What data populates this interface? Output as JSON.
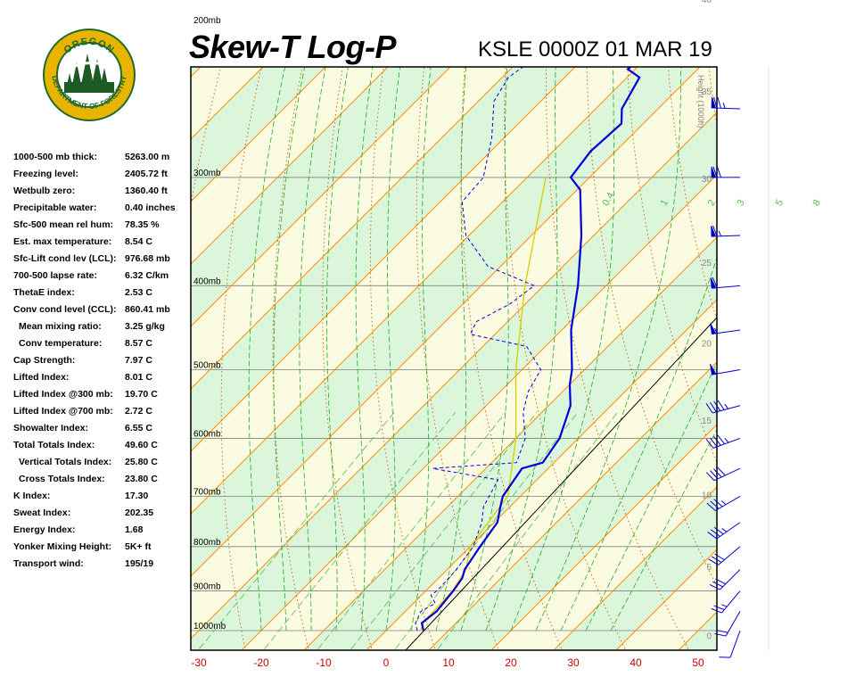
{
  "header": {
    "title": "Skew-T Log-P",
    "station": "KSLE 0000Z 01 MAR 19"
  },
  "logo": {
    "top_text": "OREGON",
    "ring_text": "DEPARTMENT OF FORESTRY",
    "colors": {
      "ring": "#1e6b2a",
      "gold": "#e8b400",
      "tree": "#1d5a25"
    }
  },
  "indices": [
    {
      "label": "1000-500 mb thick:",
      "value": "5263.00 m"
    },
    {
      "label": "Freezing level:",
      "value": "2405.72 ft"
    },
    {
      "label": "Wetbulb zero:",
      "value": "1360.40 ft"
    },
    {
      "label": "Precipitable water:",
      "value": "0.40 inches"
    },
    {
      "label": "Sfc-500 mean rel hum:",
      "value": "78.35 %"
    },
    {
      "label": "Est. max temperature:",
      "value": "8.54 C"
    },
    {
      "label": "Sfc-Lift cond lev (LCL):",
      "value": "976.68 mb"
    },
    {
      "label": "700-500 lapse rate:",
      "value": "6.32 C/km"
    },
    {
      "label": "ThetaE index:",
      "value": "2.53 C"
    },
    {
      "label": "Conv cond level (CCL):",
      "value": "860.41 mb"
    },
    {
      "label": "Mean mixing ratio:",
      "value": "3.25 g/kg",
      "indent": true
    },
    {
      "label": "Conv temperature:",
      "value": "8.57 C",
      "indent": true
    },
    {
      "label": "Cap Strength:",
      "value": "7.97 C"
    },
    {
      "label": "Lifted Index:",
      "value": "8.01 C"
    },
    {
      "label": "Lifted Index @300 mb:",
      "value": "19.70 C"
    },
    {
      "label": "Lifted Index @700 mb:",
      "value": "2.72 C"
    },
    {
      "label": "Showalter Index:",
      "value": "6.55 C"
    },
    {
      "label": "Total Totals Index:",
      "value": "49.60 C"
    },
    {
      "label": "Vertical Totals Index:",
      "value": "25.80 C",
      "indent": true
    },
    {
      "label": "Cross Totals Index:",
      "value": "23.80 C",
      "indent": true
    },
    {
      "label": "K Index:",
      "value": "17.30"
    },
    {
      "label": "Sweat Index:",
      "value": "202.35"
    },
    {
      "label": "Energy Index:",
      "value": "1.68"
    },
    {
      "label": "Yonker Mixing Height:",
      "value": "5K+ ft"
    },
    {
      "label": "Transport wind:",
      "value": "195/19"
    }
  ],
  "chart_data": {
    "type": "line",
    "xlabel": "",
    "ylabel": "",
    "x_ticks": [
      -30,
      -20,
      -10,
      0,
      10,
      20,
      30,
      40,
      50
    ],
    "xlim": [
      -30,
      52
    ],
    "pressure_levels": [
      {
        "p": 1000,
        "label": "1000mb"
      },
      {
        "p": 900,
        "label": "900mb"
      },
      {
        "p": 800,
        "label": "800mb"
      },
      {
        "p": 700,
        "label": "700mb"
      },
      {
        "p": 600,
        "label": "600mb"
      },
      {
        "p": 500,
        "label": "500mb"
      },
      {
        "p": 400,
        "label": "400mb"
      },
      {
        "p": 300,
        "label": "300mb"
      },
      {
        "p": 200,
        "label": "200mb"
      }
    ],
    "height_axis": {
      "label": "Height (1000ft)",
      "ticks": [
        {
          "label": "0",
          "kft": 0
        },
        {
          "label": "5",
          "kft": 5
        },
        {
          "label": "10",
          "kft": 10
        },
        {
          "label": "15",
          "kft": 15
        },
        {
          "label": "20",
          "kft": 20
        },
        {
          "label": "25",
          "kft": 25
        },
        {
          "label": "30",
          "kft": 30
        },
        {
          "label": "35",
          "kft": 35
        },
        {
          "label": "40",
          "kft": 40
        },
        {
          "label": "45",
          "kft": 45
        },
        {
          "label": "50",
          "kft": 50
        }
      ]
    },
    "mixing_ratio_labels": [
      "0.4",
      "1",
      "2",
      "3",
      "5",
      "8"
    ],
    "series": [
      {
        "role": "temperature",
        "color": "#0000dd",
        "points": [
          [
            6.0,
            1000
          ],
          [
            4.5,
            980
          ],
          [
            5.0,
            950
          ],
          [
            4.4,
            900
          ],
          [
            3.8,
            870
          ],
          [
            2.8,
            850
          ],
          [
            1.6,
            800
          ],
          [
            0.5,
            750
          ],
          [
            -1.5,
            720
          ],
          [
            -2.8,
            700
          ],
          [
            -4.2,
            650
          ],
          [
            -1.8,
            640
          ],
          [
            -3.0,
            600
          ],
          [
            -6.5,
            550
          ],
          [
            -10.0,
            520
          ],
          [
            -12.0,
            500
          ],
          [
            -18.5,
            450
          ],
          [
            -24.5,
            400
          ],
          [
            -32.0,
            350
          ],
          [
            -39.5,
            310
          ],
          [
            -43.0,
            300
          ],
          [
            -44.0,
            280
          ],
          [
            -43.5,
            260
          ],
          [
            -45.8,
            250
          ],
          [
            -48.0,
            230
          ],
          [
            -51.2,
            225
          ],
          [
            -50.2,
            210
          ],
          [
            -52.0,
            200
          ],
          [
            -53.0,
            185
          ],
          [
            -51.8,
            170
          ],
          [
            -53.5,
            160
          ],
          [
            -51.5,
            150
          ]
        ]
      },
      {
        "role": "dewpoint",
        "color": "#0000dd",
        "points": [
          [
            5.0,
            1000
          ],
          [
            3.5,
            980
          ],
          [
            2.5,
            950
          ],
          [
            3.5,
            930
          ],
          [
            1.5,
            910
          ],
          [
            1.8,
            900
          ],
          [
            1.5,
            850
          ],
          [
            0.5,
            800
          ],
          [
            -2.0,
            750
          ],
          [
            -4.2,
            720
          ],
          [
            -5.0,
            700
          ],
          [
            -6.2,
            670
          ],
          [
            -18.5,
            650
          ],
          [
            -6.0,
            640
          ],
          [
            -8.5,
            600
          ],
          [
            -13.0,
            560
          ],
          [
            -15.5,
            530
          ],
          [
            -17.0,
            500
          ],
          [
            -23.0,
            470
          ],
          [
            -34.0,
            455
          ],
          [
            -35.0,
            440
          ],
          [
            -32.5,
            420
          ],
          [
            -31.5,
            400
          ],
          [
            -42.0,
            380
          ],
          [
            -50.5,
            350
          ],
          [
            -56.5,
            320
          ],
          [
            -57.0,
            300
          ],
          [
            -62.0,
            270
          ],
          [
            -67.5,
            245
          ],
          [
            -69.0,
            230
          ],
          [
            -67.0,
            210
          ],
          [
            -69.0,
            200
          ],
          [
            -74.0,
            190
          ],
          [
            -80.0,
            170
          ],
          [
            -83.0,
            150
          ]
        ]
      }
    ],
    "parcel": {
      "role": "parcel-trace",
      "color": "#d8d000",
      "points": [
        [
          5.5,
          1000
        ],
        [
          4.6,
          975
        ],
        [
          4.3,
          900
        ],
        [
          3.0,
          850
        ],
        [
          0.0,
          800
        ],
        [
          -2.0,
          700
        ],
        [
          -10.0,
          600
        ],
        [
          -21.0,
          500
        ],
        [
          -33.0,
          400
        ],
        [
          -47.0,
          300
        ]
      ]
    },
    "wind_barbs": [
      {
        "p": 1000,
        "dir": 200,
        "kt": 10
      },
      {
        "p": 950,
        "dir": 210,
        "kt": 20
      },
      {
        "p": 900,
        "dir": 220,
        "kt": 25
      },
      {
        "p": 850,
        "dir": 225,
        "kt": 30
      },
      {
        "p": 800,
        "dir": 230,
        "kt": 30
      },
      {
        "p": 750,
        "dir": 235,
        "kt": 35
      },
      {
        "p": 700,
        "dir": 240,
        "kt": 35
      },
      {
        "p": 650,
        "dir": 245,
        "kt": 40
      },
      {
        "p": 600,
        "dir": 250,
        "kt": 45
      },
      {
        "p": 550,
        "dir": 255,
        "kt": 45
      },
      {
        "p": 500,
        "dir": 260,
        "kt": 50
      },
      {
        "p": 450,
        "dir": 262,
        "kt": 55
      },
      {
        "p": 400,
        "dir": 265,
        "kt": 60
      },
      {
        "p": 350,
        "dir": 268,
        "kt": 65
      },
      {
        "p": 300,
        "dir": 270,
        "kt": 70
      },
      {
        "p": 250,
        "dir": 272,
        "kt": 75
      },
      {
        "p": 200,
        "dir": 275,
        "kt": 85
      },
      {
        "p": 175,
        "dir": 275,
        "kt": 80
      },
      {
        "p": 150,
        "dir": 278,
        "kt": 70
      }
    ],
    "colors": {
      "background": "#fbfbe2",
      "shade": "#dcf6dc",
      "isotherm": "#ff8c00",
      "dry_adiabat": "#c06000",
      "moist_adiabat": "#22aa22",
      "mixing_ratio": "#55bb55",
      "reference_adiabat": "#000000",
      "axis_labels": "#cc0000",
      "barbs": "#0000cc"
    }
  }
}
